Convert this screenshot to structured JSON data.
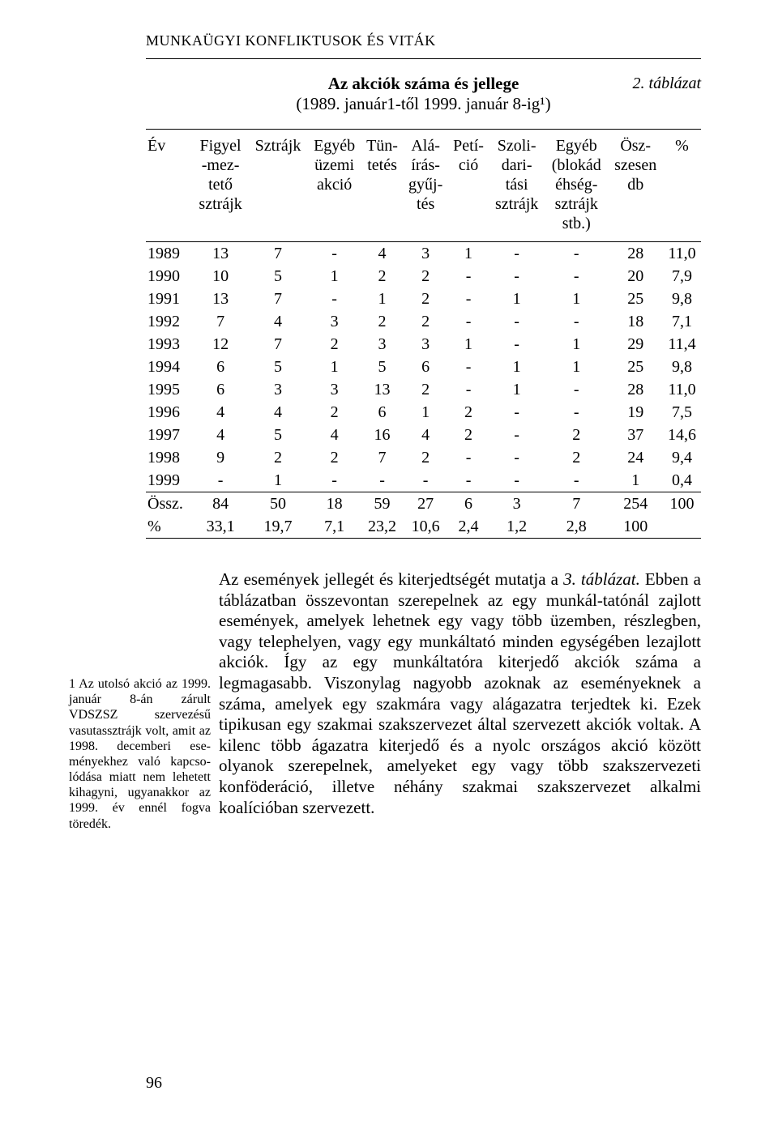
{
  "header": "MUNKAÜGYI KONFLIKTUSOK ÉS VITÁK",
  "table": {
    "tag": "2. táblázat",
    "title": "Az akciók száma és jellege",
    "subtitle": "(1989. január1-től 1999. január 8-ig¹)",
    "columns": [
      "Év",
      "Figyel\n-mez-\ntető\nsztrájk",
      "Sztrájk",
      "Egyéb\nüzemi\nakció",
      "Tün-\ntetés",
      "Alá-\nírás-\ngyűj-\ntés",
      "Petí-\nció",
      "Szoli-\ndari-\ntási\nsztrájk",
      "Egyéb\n(blokád\néhség-\nsztrájk\nstb.)",
      "Ösz-\nszesen\ndb",
      "%"
    ],
    "rows": [
      {
        "year": "1989",
        "cells": [
          "13",
          "7",
          "-",
          "4",
          "3",
          "1",
          "-",
          "-",
          "28",
          "11,0"
        ]
      },
      {
        "year": "1990",
        "cells": [
          "10",
          "5",
          "1",
          "2",
          "2",
          "-",
          "-",
          "-",
          "20",
          "7,9"
        ]
      },
      {
        "year": "1991",
        "cells": [
          "13",
          "7",
          "-",
          "1",
          "2",
          "-",
          "1",
          "1",
          "25",
          "9,8"
        ]
      },
      {
        "year": "1992",
        "cells": [
          "7",
          "4",
          "3",
          "2",
          "2",
          "-",
          "-",
          "-",
          "18",
          "7,1"
        ]
      },
      {
        "year": "1993",
        "cells": [
          "12",
          "7",
          "2",
          "3",
          "3",
          "1",
          "-",
          "1",
          "29",
          "11,4"
        ]
      },
      {
        "year": "1994",
        "cells": [
          "6",
          "5",
          "1",
          "5",
          "6",
          "-",
          "1",
          "1",
          "25",
          "9,8"
        ]
      },
      {
        "year": "1995",
        "cells": [
          "6",
          "3",
          "3",
          "13",
          "2",
          "-",
          "1",
          "-",
          "28",
          "11,0"
        ]
      },
      {
        "year": "1996",
        "cells": [
          "4",
          "4",
          "2",
          "6",
          "1",
          "2",
          "-",
          "-",
          "19",
          "7,5"
        ]
      },
      {
        "year": "1997",
        "cells": [
          "4",
          "5",
          "4",
          "16",
          "4",
          "2",
          "-",
          "2",
          "37",
          "14,6"
        ]
      },
      {
        "year": "1998",
        "cells": [
          "9",
          "2",
          "2",
          "7",
          "2",
          "-",
          "-",
          "2",
          "24",
          "9,4"
        ]
      },
      {
        "year": "1999",
        "cells": [
          "-",
          "1",
          "-",
          "-",
          "-",
          "-",
          "-",
          "-",
          "1",
          "0,4"
        ]
      }
    ],
    "summary": [
      {
        "label": "Össz.",
        "cells": [
          "84",
          "50",
          "18",
          "59",
          "27",
          "6",
          "3",
          "7",
          "254",
          "100"
        ]
      },
      {
        "label": "%",
        "cells": [
          "33,1",
          "19,7",
          "7,1",
          "23,2",
          "10,6",
          "2,4",
          "1,2",
          "2,8",
          "100",
          ""
        ]
      }
    ]
  },
  "footnote": "1 Az utolsó akció az 1999. január 8-án zárult VDSZSZ szervezésű vasutassztrájk volt, amit az 1998. decemberi ese-ményekhez való kapcso-lódása miatt nem lehetett kihagyni, ugyanakkor az 1999. év ennél fogva töredék.",
  "paragraph_lead": "Az események jellegét és kiterjedtségét mutatja a ",
  "paragraph_lead_italic": "3. táblázat.",
  "paragraph_body": " Ebben a táblázatban összevontan szerepelnek az egy munkál-tatónál zajlott események, amelyek lehetnek egy vagy több üzemben, részlegben, vagy telephelyen, vagy egy munkáltató minden egységében lezajlott akciók. Így az egy munkáltatóra kiterjedő akciók száma a legmagasabb. Viszonylag nagyobb azoknak az eseményeknek a száma, amelyek egy szakmára vagy alágazatra terjedtek ki. Ezek tipikusan egy szakmai szakszervezet által szervezett akciók voltak. A kilenc több ágazatra kiterjedő és a nyolc országos akció között olyanok szerepelnek, amelyeket egy vagy több szakszervezeti konföderáció, illetve néhány szakmai szakszervezet alkalmi koalícióban szervezett.",
  "page_number": "96"
}
